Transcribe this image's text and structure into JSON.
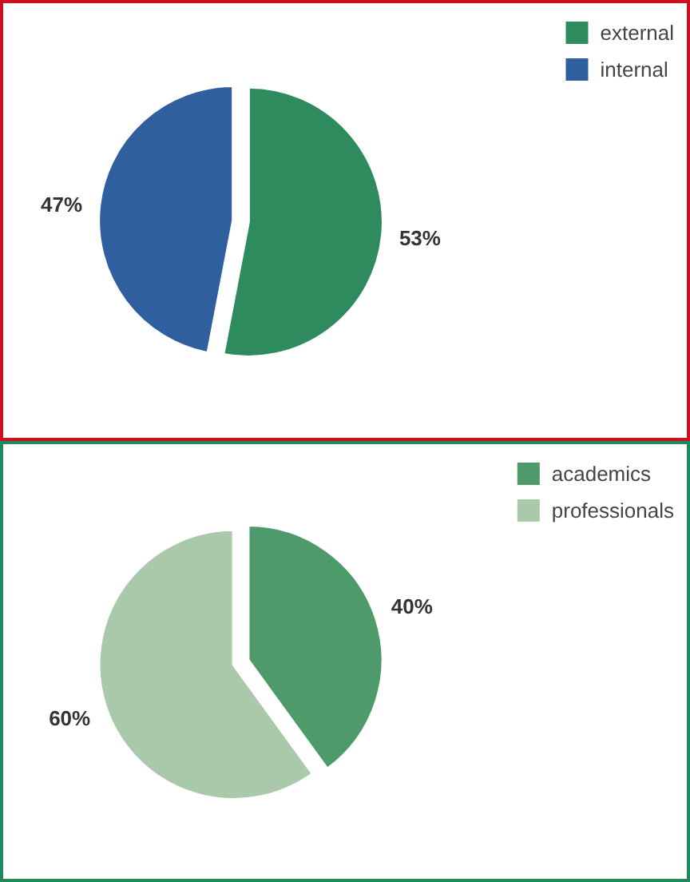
{
  "chart_data": [
    {
      "type": "pie",
      "categories": [
        "external",
        "internal"
      ],
      "values": [
        53,
        47
      ],
      "colors": [
        "#2e8b5e",
        "#2f5f9e"
      ],
      "value_labels": [
        "53%",
        "47%"
      ],
      "legend": "top right"
    },
    {
      "type": "pie",
      "categories": [
        "academics",
        "professionals"
      ],
      "values": [
        40,
        60
      ],
      "colors": [
        "#4f9a6a",
        "#a9c9aa"
      ],
      "value_labels": [
        "40%",
        "60%"
      ],
      "legend": "top right"
    }
  ]
}
